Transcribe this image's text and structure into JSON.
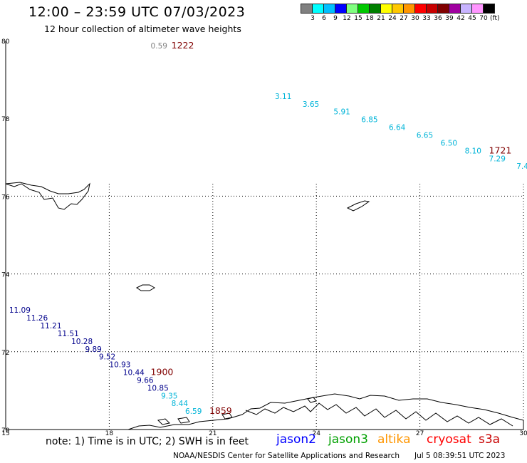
{
  "title": "12:00 – 23:59 UTC 07/03/2023",
  "subtitle": "12 hour collection of altimeter wave heights",
  "colorbar": {
    "colors": [
      "#808080",
      "#00ffff",
      "#00bfff",
      "#0000ff",
      "#80ff80",
      "#00c800",
      "#008000",
      "#ffff00",
      "#ffc800",
      "#ff9600",
      "#ff0000",
      "#c80000",
      "#800000",
      "#a000a0",
      "#c8b4ff",
      "#ff96ff",
      "#000000"
    ],
    "labels": [
      "3",
      "6",
      "9",
      "12",
      "15",
      "18",
      "21",
      "24",
      "27",
      "30",
      "33",
      "36",
      "39",
      "42",
      "45",
      "70"
    ],
    "unit": "(ft)"
  },
  "map": {
    "lat_labels": [
      "80",
      "78",
      "76",
      "74",
      "72",
      "70"
    ],
    "lon_labels": [
      "15",
      "18",
      "21",
      "24",
      "27",
      "30"
    ],
    "lat_values": [
      80,
      78,
      76,
      74,
      72,
      70
    ],
    "lon_values": [
      15,
      18,
      21,
      24,
      27,
      30
    ],
    "gridline_lons": [
      18,
      21,
      24,
      27,
      30
    ],
    "gridline_lats": [
      76,
      74,
      72
    ]
  },
  "tracks": [
    {
      "color": "#808080",
      "points": [
        {
          "lon": 19.2,
          "lat": 79.8,
          "v": "0.59"
        }
      ]
    },
    {
      "color": "#00b4d8",
      "points": [
        {
          "lon": 22.8,
          "lat": 78.5,
          "v": "3.11"
        },
        {
          "lon": 23.6,
          "lat": 78.3,
          "v": "3.65"
        },
        {
          "lon": 24.5,
          "lat": 78.1,
          "v": "5.91"
        },
        {
          "lon": 25.3,
          "lat": 77.9,
          "v": "6.85"
        },
        {
          "lon": 26.1,
          "lat": 77.7,
          "v": "6.64"
        },
        {
          "lon": 26.9,
          "lat": 77.5,
          "v": "6.65"
        },
        {
          "lon": 27.6,
          "lat": 77.3,
          "v": "6.50"
        },
        {
          "lon": 28.3,
          "lat": 77.1,
          "v": "8.10"
        },
        {
          "lon": 29.0,
          "lat": 76.9,
          "v": "7.29"
        },
        {
          "lon": 29.8,
          "lat": 76.7,
          "v": "7.4"
        }
      ]
    },
    {
      "color": "#00008b",
      "points": [
        {
          "lon": 15.1,
          "lat": 73.0,
          "v": "11.09"
        },
        {
          "lon": 15.6,
          "lat": 72.8,
          "v": "11.26"
        },
        {
          "lon": 16.0,
          "lat": 72.6,
          "v": "11.21"
        },
        {
          "lon": 16.5,
          "lat": 72.4,
          "v": "11.51"
        },
        {
          "lon": 16.9,
          "lat": 72.2,
          "v": "10.28"
        },
        {
          "lon": 17.3,
          "lat": 72.0,
          "v": "9.89"
        },
        {
          "lon": 17.7,
          "lat": 71.8,
          "v": "9.52"
        },
        {
          "lon": 18.0,
          "lat": 71.6,
          "v": "10.93"
        },
        {
          "lon": 18.4,
          "lat": 71.4,
          "v": "10.44"
        },
        {
          "lon": 18.8,
          "lat": 71.2,
          "v": "9.66"
        },
        {
          "lon": 19.1,
          "lat": 71.0,
          "v": "10.85"
        }
      ]
    },
    {
      "color": "#00b4d8",
      "points": [
        {
          "lon": 19.5,
          "lat": 70.8,
          "v": "9.35"
        },
        {
          "lon": 19.8,
          "lat": 70.6,
          "v": "8.44"
        },
        {
          "lon": 20.2,
          "lat": 70.4,
          "v": "6.59"
        }
      ]
    }
  ],
  "pass_times": [
    {
      "lon": 19.8,
      "lat": 79.8,
      "label": "1222"
    },
    {
      "lon": 29.0,
      "lat": 77.1,
      "label": "1721"
    },
    {
      "lon": 19.2,
      "lat": 71.4,
      "label": "1900"
    },
    {
      "lon": 20.9,
      "lat": 70.4,
      "label": "1859"
    }
  ],
  "pass_time_color": "#800000",
  "note": "note: 1) Time is in UTC; 2) SWH is in feet",
  "satellites": [
    {
      "name": "jason2",
      "color": "#0000ff"
    },
    {
      "name": "jason3",
      "color": "#00a000"
    },
    {
      "name": "altika",
      "color": "#ff9600"
    },
    {
      "name": "cryosat",
      "color": "#ff0000"
    },
    {
      "name": "s3a",
      "color": "#c80000"
    }
  ],
  "credit": "NOAA/NESDIS Center for Satellite Applications and Research",
  "timestamp": "Jul  5 08:39:51 UTC 2023"
}
